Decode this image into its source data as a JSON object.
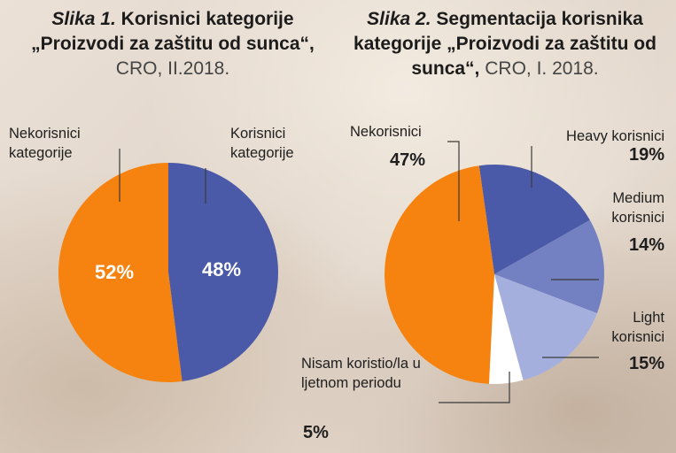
{
  "chart_data": [
    {
      "type": "pie",
      "title_lead": "Slika 1.",
      "title_main": "Korisnici kategorije „Proizvodi za zaštitu od sunca“,",
      "title_sub": "CRO, II.2018.",
      "slices": [
        {
          "label": "Nekorisnici kategorije",
          "value": 52,
          "display": "52%",
          "color": "#f6830f"
        },
        {
          "label": "Korisnici kategorije",
          "value": 48,
          "display": "48%",
          "color": "#4b5aa8"
        }
      ]
    },
    {
      "type": "pie",
      "title_lead": "Slika 2.",
      "title_main": "Segmentacija korisnika kategorije „Proizvodi za zaštitu od sunca“,",
      "title_sub": "CRO, I. 2018.",
      "slices": [
        {
          "label": "Heavy korisnici",
          "value": 19,
          "display": "19%",
          "color": "#4b5aa8"
        },
        {
          "label": "Medium korisnici",
          "value": 14,
          "display": "14%",
          "color": "#7381c2"
        },
        {
          "label": "Light korisnici",
          "value": 15,
          "display": "15%",
          "color": "#a5afde"
        },
        {
          "label": "Nisam koristio/la u ljetnom periodu",
          "value": 5,
          "display": "5%",
          "color": "#ffffff"
        },
        {
          "label": "Nekorisnici",
          "value": 47,
          "display": "47%",
          "color": "#f6830f"
        }
      ]
    }
  ]
}
